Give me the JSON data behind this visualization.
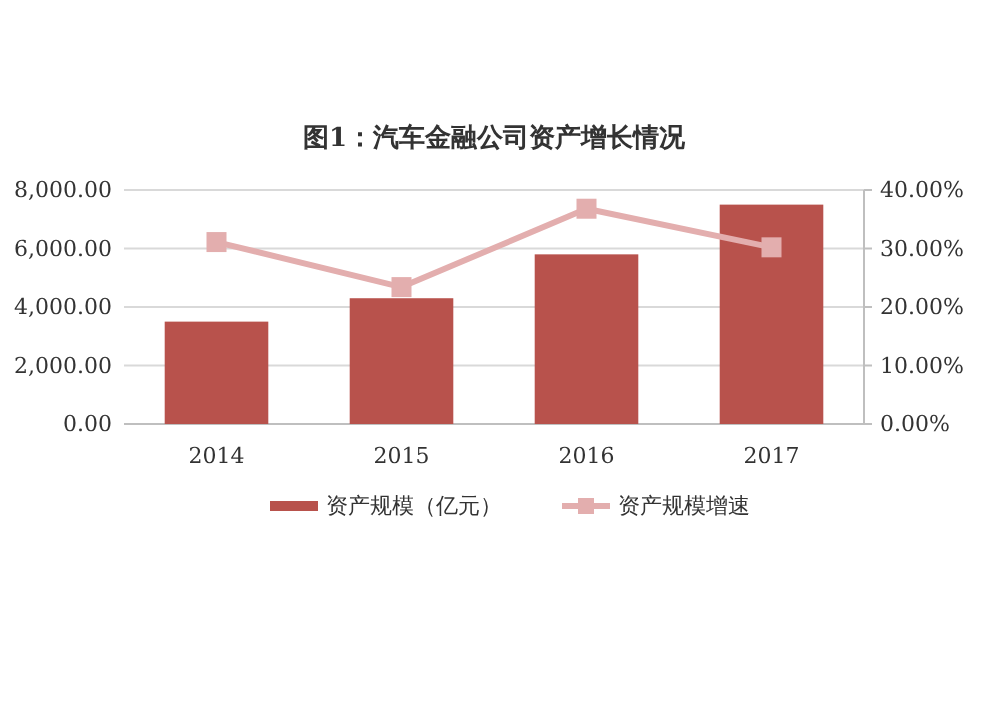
{
  "chart_data": {
    "type": "bar",
    "title": "图1：汽车金融公司资产增长情况",
    "categories": [
      "2014",
      "2015",
      "2016",
      "2017"
    ],
    "series": [
      {
        "name": "资产规模（亿元）",
        "color": "#b8524c",
        "values": [
          3500,
          4300,
          5800,
          7500
        ]
      },
      {
        "name": "资产规模增速",
        "type": "line",
        "axis": "y2",
        "color": "#e3aeae",
        "marker": "square",
        "values": [
          31.1,
          23.4,
          36.8,
          30.2
        ]
      }
    ],
    "ylim": [
      0,
      8000
    ],
    "yticks": [
      {
        "value": 0,
        "label": "0.00"
      },
      {
        "value": 2000,
        "label": "2,000.00"
      },
      {
        "value": 4000,
        "label": "4,000.00"
      },
      {
        "value": 6000,
        "label": "6,000.00"
      },
      {
        "value": 8000,
        "label": "8,000.00"
      }
    ],
    "y2lim": [
      0,
      40
    ],
    "y2ticks": [
      {
        "value": 0,
        "label": "0.00%"
      },
      {
        "value": 10,
        "label": "10.00%"
      },
      {
        "value": 20,
        "label": "20.00%"
      },
      {
        "value": 30,
        "label": "30.00%"
      },
      {
        "value": 40,
        "label": "40.00%"
      }
    ],
    "grid": "y",
    "legend": "bottom"
  }
}
